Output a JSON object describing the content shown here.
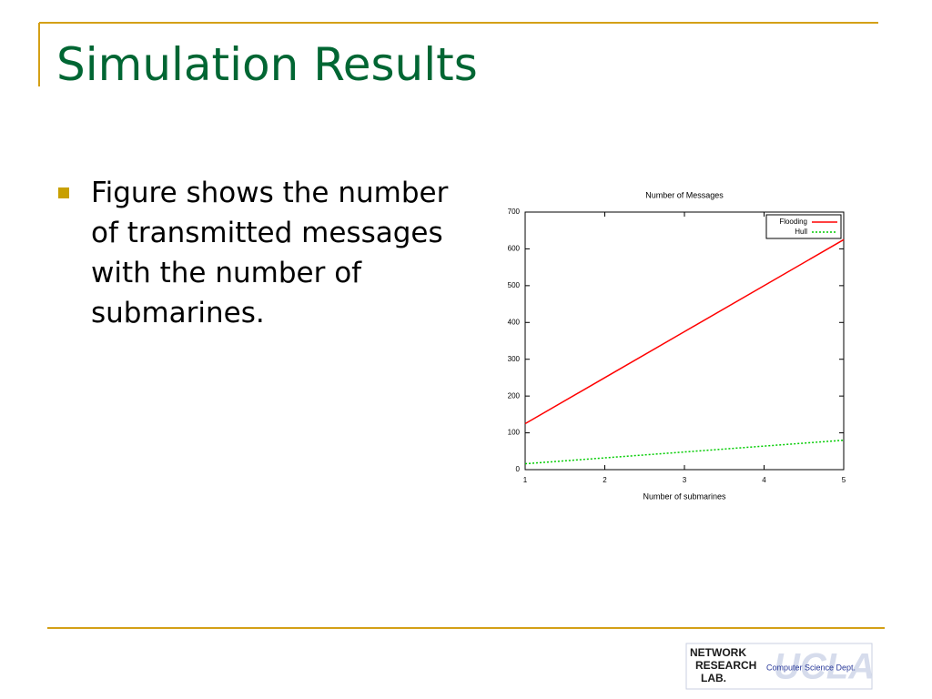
{
  "slide": {
    "title": "Simulation Results",
    "bullets": [
      "Figure shows the number of transmitted messages with the number of submarines."
    ],
    "logo": {
      "lines": [
        "NETWORK",
        "RESEARCH",
        "LAB."
      ],
      "dept": "Computer Science Dept.",
      "school": "UCLA"
    }
  },
  "chart_data": {
    "type": "line",
    "title": "Number of Messages",
    "x_label": "Number of submarines",
    "x": [
      1,
      2,
      3,
      4,
      5
    ],
    "series": [
      {
        "name": "Flooding",
        "color": "#ff0000",
        "dash": false,
        "values": [
          125,
          250,
          375,
          500,
          625
        ]
      },
      {
        "name": "Hull",
        "color": "#00cc00",
        "dash": true,
        "values": [
          16,
          32,
          48,
          64,
          80
        ]
      }
    ],
    "xlim": [
      1,
      5
    ],
    "xticks": [
      1,
      2,
      3,
      4,
      5
    ],
    "ylim": [
      0,
      700
    ],
    "yticks": [
      0,
      100,
      200,
      300,
      400,
      500,
      600,
      700
    ],
    "grid": false,
    "legend": "top-right"
  }
}
